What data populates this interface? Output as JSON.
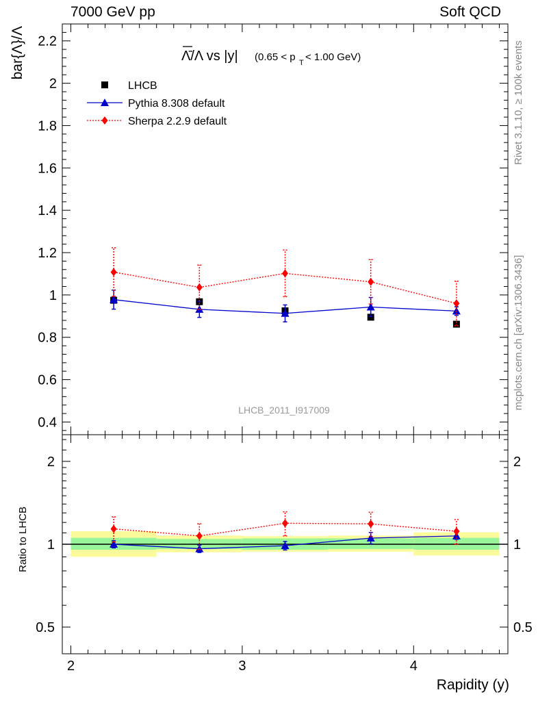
{
  "header": {
    "energy_label": "7000 GeV pp",
    "process_label": "Soft QCD"
  },
  "side_text": {
    "rivet": "Rivet 3.1.10, ≥ 100k events",
    "source": "mcplots.cern.ch [arXiv:1306.3436]"
  },
  "watermark": "LHCB_2011_I917009",
  "chart_data": [
    {
      "type": "scatter",
      "panel": "main",
      "title": "Λ̄/Λ vs |y|(0.65 < p_T < 1.00 GeV)",
      "title_parts": {
        "ratio": "Λ̄/Λ vs |y|",
        "range_open": "(0.65 < p",
        "range_sub": "T",
        "range_close": " < 1.00 GeV)"
      },
      "ylabel": "bar{Λ}/Λ",
      "xlabel": "",
      "xlim": [
        1.95,
        4.55
      ],
      "ylim": [
        0.34,
        2.28
      ],
      "yticks": [
        0.4,
        0.6,
        0.8,
        1,
        1.2,
        1.4,
        1.6,
        1.8,
        2,
        2.2
      ],
      "ytick_labels": [
        "0.4",
        "0.6",
        "0.8",
        "1",
        "1.2",
        "1.4",
        "1.6",
        "1.8",
        "2",
        "2.2"
      ],
      "legend_position": "top-left",
      "series": [
        {
          "name": "LHCB",
          "color": "#000000",
          "marker": "square",
          "line": "none",
          "x": [
            2.25,
            2.75,
            3.25,
            3.75,
            4.25
          ],
          "y": [
            0.975,
            0.968,
            0.925,
            0.895,
            0.862
          ],
          "err": [
            0.01,
            0.01,
            0.01,
            0.01,
            0.01
          ]
        },
        {
          "name": "Pythia 8.308 default",
          "color": "#0000cc",
          "marker": "triangle",
          "line": "solid",
          "x": [
            2.25,
            2.75,
            3.25,
            3.75,
            4.25
          ],
          "y": [
            0.978,
            0.932,
            0.913,
            0.943,
            0.924
          ],
          "err": [
            0.045,
            0.038,
            0.04,
            0.045,
            0.02
          ]
        },
        {
          "name": "Sherpa 2.2.9 default",
          "color": "#ff0000",
          "marker": "diamond",
          "line": "dotted",
          "x": [
            2.25,
            2.75,
            3.25,
            3.75,
            4.25
          ],
          "y": [
            1.108,
            1.036,
            1.102,
            1.062,
            0.96
          ],
          "err": [
            0.115,
            0.105,
            0.11,
            0.105,
            0.105
          ]
        }
      ]
    },
    {
      "type": "scatter",
      "panel": "ratio",
      "ylabel": "Ratio to LHCB",
      "xlabel": "Rapidity (y)",
      "xlim": [
        1.95,
        4.55
      ],
      "ylim": [
        0.4,
        2.5
      ],
      "log_y": true,
      "xticks": [
        2,
        3,
        4
      ],
      "xtick_labels": [
        "2",
        "3",
        "4"
      ],
      "yticks": [
        0.5,
        1,
        2
      ],
      "ytick_labels": [
        "0.5",
        "1",
        "2"
      ],
      "bands": {
        "bin_edges": [
          2.0,
          2.5,
          3.0,
          3.5,
          4.0,
          4.5
        ],
        "stat_color": "#99f599",
        "total_color": "#fbfb9c",
        "stat": [
          [
            0.955,
            1.055
          ],
          [
            0.96,
            1.045
          ],
          [
            0.955,
            1.05
          ],
          [
            0.96,
            1.05
          ],
          [
            0.955,
            1.055
          ]
        ],
        "total": [
          [
            0.9,
            1.115
          ],
          [
            0.935,
            1.075
          ],
          [
            0.94,
            1.07
          ],
          [
            0.94,
            1.075
          ],
          [
            0.91,
            1.105
          ]
        ]
      },
      "series": [
        {
          "name": "Pythia 8.308 default",
          "color": "#0000cc",
          "marker": "triangle",
          "line": "solid",
          "x": [
            2.25,
            2.75,
            3.25,
            3.75,
            4.25
          ],
          "y": [
            1.0,
            0.963,
            0.988,
            1.053,
            1.072
          ],
          "err": [
            0.03,
            0.03,
            0.035,
            0.05,
            0.03
          ]
        },
        {
          "name": "Sherpa 2.2.9 default",
          "color": "#ff0000",
          "marker": "diamond",
          "line": "dotted",
          "x": [
            2.25,
            2.75,
            3.25,
            3.75,
            4.25
          ],
          "y": [
            1.137,
            1.072,
            1.192,
            1.186,
            1.114
          ],
          "err": [
            0.12,
            0.115,
            0.12,
            0.12,
            0.115
          ]
        }
      ]
    }
  ]
}
